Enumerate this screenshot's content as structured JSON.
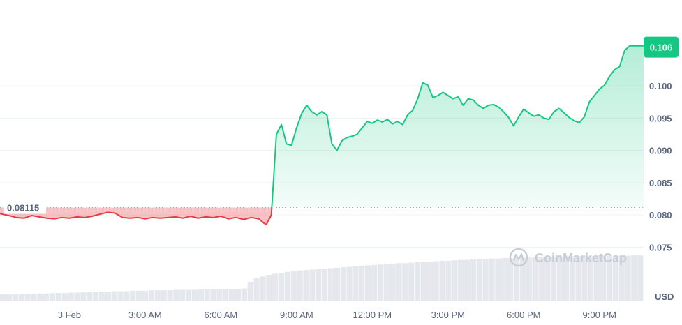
{
  "chart_data": {
    "type": "line",
    "unit": "USD",
    "reference_value": 0.08115,
    "reference_label": "0.08115",
    "current_value": 0.106,
    "current_label": "0.106",
    "ylim": [
      0.0705,
      0.1105
    ],
    "yticks": [
      "0.100",
      "0.095",
      "0.090",
      "0.085",
      "0.080",
      "0.075"
    ],
    "ytick_values": [
      0.1,
      0.095,
      0.09,
      0.085,
      0.08,
      0.075
    ],
    "xlim": [
      -2.75,
      22.75
    ],
    "xticks": [
      "3 Feb",
      "3:00 AM",
      "6:00 AM",
      "9:00 AM",
      "12:00 PM",
      "3:00 PM",
      "6:00 PM",
      "9:00 PM"
    ],
    "xtick_values": [
      0,
      3,
      6,
      9,
      12,
      15,
      18,
      21
    ],
    "series": [
      {
        "x": [
          -2.75,
          -2.4,
          -2.1,
          -1.8,
          -1.5,
          -1.2,
          -0.9,
          -0.6,
          -0.3,
          0.0,
          0.3,
          0.6,
          0.9,
          1.2,
          1.5,
          1.8,
          2.1,
          2.4,
          2.7,
          3.0,
          3.3,
          3.6,
          3.9,
          4.2,
          4.5,
          4.8,
          5.1,
          5.4,
          5.7,
          6.0,
          6.3,
          6.6,
          6.9,
          7.2,
          7.5,
          7.65,
          7.72,
          7.8,
          8.0,
          8.2,
          8.4,
          8.6,
          8.8,
          9.0,
          9.2,
          9.4,
          9.6,
          9.8,
          10.0,
          10.2,
          10.4,
          10.6,
          10.8,
          11.0,
          11.2,
          11.4,
          11.6,
          11.8,
          12.0,
          12.2,
          12.4,
          12.6,
          12.8,
          13.0,
          13.2,
          13.4,
          13.6,
          13.8,
          14.0,
          14.2,
          14.4,
          14.6,
          14.8,
          15.0,
          15.2,
          15.4,
          15.6,
          15.8,
          16.0,
          16.2,
          16.4,
          16.6,
          16.8,
          17.0,
          17.2,
          17.4,
          17.6,
          17.8,
          18.0,
          18.2,
          18.4,
          18.6,
          18.8,
          19.0,
          19.2,
          19.4,
          19.6,
          19.8,
          20.0,
          20.2,
          20.4,
          20.6,
          20.8,
          21.0,
          21.2,
          21.4,
          21.6,
          21.8,
          22.0,
          22.2,
          22.4,
          22.6,
          22.75
        ],
        "y": [
          0.0802,
          0.0799,
          0.0796,
          0.0795,
          0.0799,
          0.0797,
          0.0795,
          0.0794,
          0.0796,
          0.0795,
          0.0797,
          0.0796,
          0.0798,
          0.0801,
          0.0804,
          0.0803,
          0.0796,
          0.0795,
          0.0796,
          0.0794,
          0.0796,
          0.0795,
          0.0796,
          0.0797,
          0.0795,
          0.0798,
          0.0795,
          0.0797,
          0.0796,
          0.0798,
          0.0794,
          0.0796,
          0.0793,
          0.0796,
          0.0794,
          0.0789,
          0.0787,
          0.0785,
          0.08,
          0.0925,
          0.094,
          0.091,
          0.0908,
          0.0935,
          0.0957,
          0.097,
          0.096,
          0.0955,
          0.096,
          0.0955,
          0.091,
          0.09,
          0.0915,
          0.092,
          0.0922,
          0.0925,
          0.0935,
          0.0945,
          0.0942,
          0.0947,
          0.0944,
          0.0948,
          0.0941,
          0.0945,
          0.094,
          0.0955,
          0.0962,
          0.098,
          0.1005,
          0.1001,
          0.0982,
          0.0985,
          0.099,
          0.0985,
          0.098,
          0.0983,
          0.097,
          0.098,
          0.0978,
          0.097,
          0.0965,
          0.097,
          0.0971,
          0.0967,
          0.096,
          0.0951,
          0.0938,
          0.0952,
          0.0964,
          0.0958,
          0.0953,
          0.0955,
          0.095,
          0.0948,
          0.096,
          0.0965,
          0.0958,
          0.0951,
          0.0946,
          0.0943,
          0.0952,
          0.0975,
          0.0985,
          0.0995,
          0.1001,
          0.1015,
          0.1025,
          0.103,
          0.1055,
          0.1062,
          0.1062,
          0.1062,
          0.1062
        ]
      }
    ],
    "volume": [
      0.15,
      0.15,
      0.15,
      0.16,
      0.16,
      0.16,
      0.17,
      0.17,
      0.18,
      0.18,
      0.18,
      0.19,
      0.19,
      0.2,
      0.2,
      0.2,
      0.21,
      0.21,
      0.22,
      0.22,
      0.22,
      0.23,
      0.23,
      0.23,
      0.24,
      0.24,
      0.24,
      0.24,
      0.25,
      0.25,
      0.25,
      0.25,
      0.26,
      0.26,
      0.26,
      0.26,
      0.27,
      0.27,
      0.27,
      0.28,
      0.42,
      0.5,
      0.54,
      0.57,
      0.6,
      0.62,
      0.64,
      0.66,
      0.67,
      0.68,
      0.69,
      0.7,
      0.71,
      0.72,
      0.73,
      0.74,
      0.75,
      0.76,
      0.77,
      0.78,
      0.79,
      0.8,
      0.81,
      0.82,
      0.83,
      0.83,
      0.84,
      0.85,
      0.86,
      0.86,
      0.87,
      0.88,
      0.88,
      0.89,
      0.9,
      0.9,
      0.91,
      0.92,
      0.92,
      0.93,
      0.93,
      0.94,
      0.94,
      0.95,
      0.95,
      0.95,
      0.96,
      0.96,
      0.97,
      0.97,
      0.97,
      0.98,
      0.98,
      0.98,
      0.98,
      0.98,
      0.99,
      0.99,
      0.99,
      0.99,
      0.99,
      0.99,
      1.0,
      1.0
    ],
    "watermark": "CoinMarketCap",
    "colors": {
      "up_line": "#16c784",
      "down_line": "#ea3943",
      "up_fill": "#16c784",
      "down_fill": "#ea3943",
      "grid": "#eff2f5",
      "volume": "#e4e7ec",
      "badge": "#16c784",
      "reference": "#a6b0c3"
    },
    "grid": true
  }
}
